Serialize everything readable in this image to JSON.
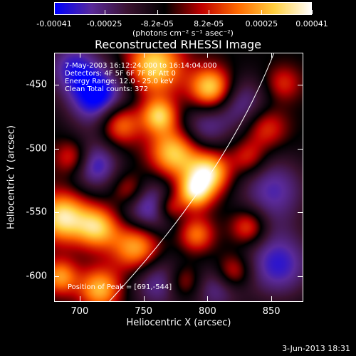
{
  "chart_data": {
    "type": "heatmap",
    "title": "Reconstructed RHESSI Image",
    "xlabel": "Heliocentric X (arcsec)",
    "ylabel": "Heliocentric Y (arcsec)",
    "xlim": [
      680,
      875
    ],
    "ylim": [
      -620,
      -425
    ],
    "x_ticks": [
      "700",
      "750",
      "800",
      "850"
    ],
    "x_tick_values": [
      700,
      750,
      800,
      850
    ],
    "y_ticks": [
      "-450",
      "-500",
      "-550",
      "-600"
    ],
    "y_tick_values": [
      -450,
      -500,
      -550,
      -600
    ],
    "colorbar": {
      "ticks": [
        "-0.00041",
        "-0.00025",
        "-8.2e-05",
        "8.2e-05",
        "0.00025",
        "0.00041"
      ],
      "tick_values": [
        -0.00041,
        -0.00025,
        -8.2e-05,
        8.2e-05,
        0.00025,
        0.00041
      ],
      "range": [
        -0.00041,
        0.00041
      ],
      "units": "(photons cm⁻² s⁻¹ asec⁻²)",
      "colormap": [
        "#0000ff",
        "#5a2a9a",
        "#3a1230",
        "#000000",
        "#c00000",
        "#ff6a00",
        "#ffd040",
        "#ffffff"
      ]
    },
    "annotations": {
      "time": "7-May-2003 16:12:24.000 to 16:14:04.000",
      "detectors": "Detectors: 4F 5F 6F 7F 8F  Att 0",
      "energy": "Energy Range: 12.0 - 25.0 keV",
      "clean": "Clean     Total counts: 372",
      "peak": "Position of Peak = [691,-544]"
    },
    "peak": [
      691,
      -544
    ],
    "limb_color": "#ffffff"
  },
  "footer": {
    "date": "3-Jun-2013 18:31"
  }
}
